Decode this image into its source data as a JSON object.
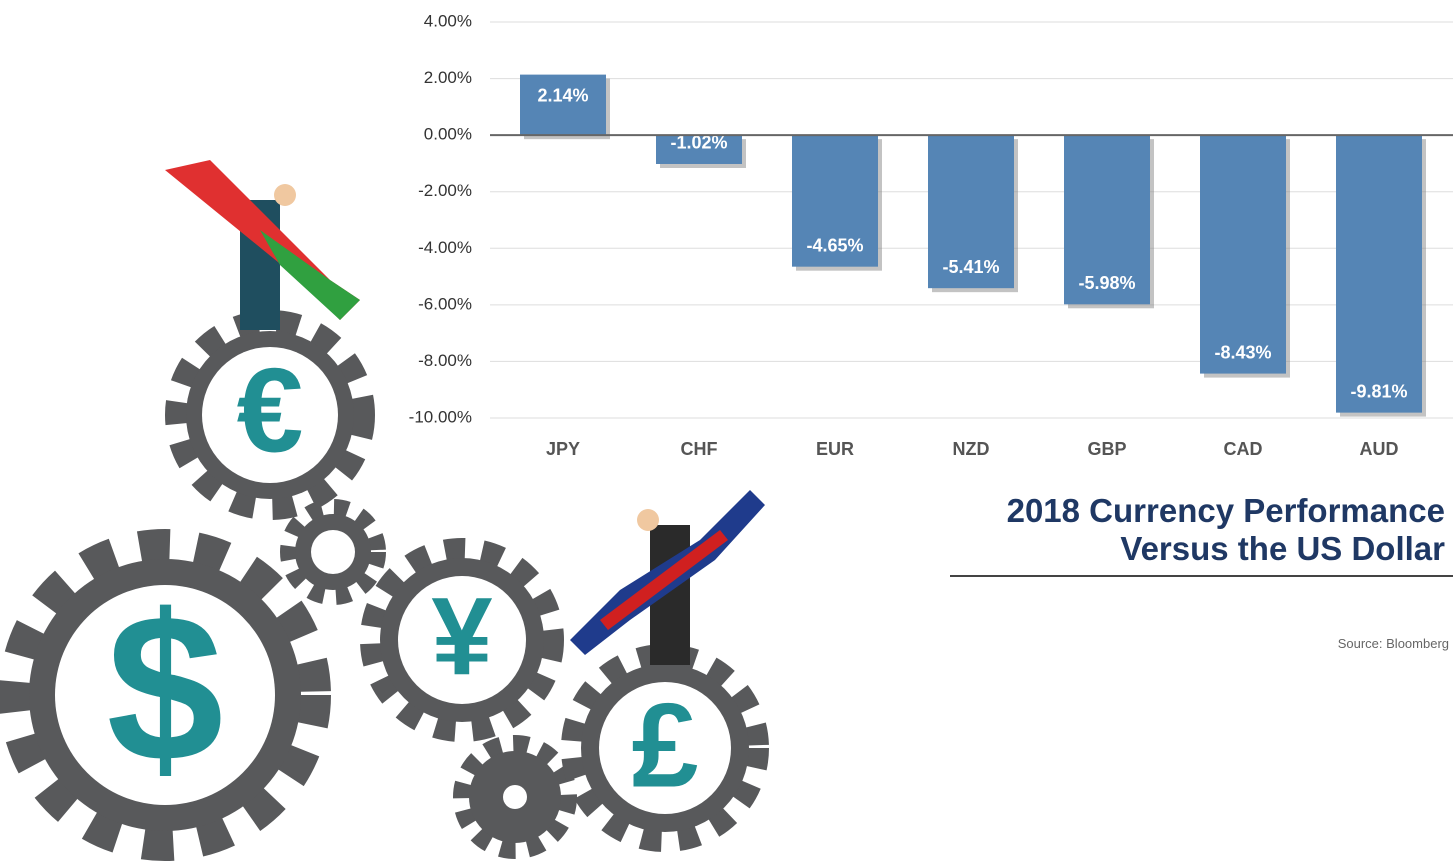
{
  "chart_data": {
    "type": "bar",
    "title": "2018 Currency Performance Versus the US Dollar",
    "source": "Source: Bloomberg",
    "categories": [
      "JPY",
      "CHF",
      "EUR",
      "NZD",
      "GBP",
      "CAD",
      "AUD"
    ],
    "values": [
      2.14,
      -1.02,
      -4.65,
      -5.41,
      -5.98,
      -8.43,
      -9.81
    ],
    "value_labels": [
      "2.14%",
      "-1.02%",
      "-4.65%",
      "-5.41%",
      "-5.98%",
      "-8.43%",
      "-9.81%"
    ],
    "color": "#5585b5",
    "ylim": [
      -10,
      4
    ],
    "yticks": [
      {
        "value": 4,
        "label": "4.00%"
      },
      {
        "value": 2,
        "label": "2.00%"
      },
      {
        "value": 0,
        "label": "0.00%"
      },
      {
        "value": -2,
        "label": "-2.00%"
      },
      {
        "value": -4,
        "label": "-4.00%"
      },
      {
        "value": -6,
        "label": "-6.00%"
      },
      {
        "value": -8,
        "label": "-8.00%"
      },
      {
        "value": -10,
        "label": "-10.00%"
      }
    ],
    "grid": true
  },
  "illustration": {
    "symbols": [
      "€",
      "$",
      "¥",
      "£"
    ]
  }
}
